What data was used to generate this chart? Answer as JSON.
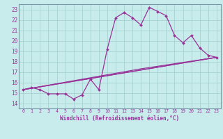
{
  "xlabel": "Windchill (Refroidissement éolien,°C)",
  "xlim": [
    -0.5,
    23.5
  ],
  "ylim": [
    13.5,
    23.5
  ],
  "yticks": [
    14,
    15,
    16,
    17,
    18,
    19,
    20,
    21,
    22,
    23
  ],
  "xticks": [
    0,
    1,
    2,
    3,
    4,
    5,
    6,
    7,
    8,
    9,
    10,
    11,
    12,
    13,
    14,
    15,
    16,
    17,
    18,
    19,
    20,
    21,
    22,
    23
  ],
  "bg_color": "#c8ecec",
  "grid_color": "#a0cccc",
  "line_color": "#993399",
  "spine_color": "#7799aa",
  "line1_x": [
    0,
    1,
    2,
    3,
    4,
    5,
    6,
    7,
    8,
    9,
    10,
    11,
    12,
    13,
    14,
    15,
    16,
    17,
    18,
    19,
    20,
    21,
    22,
    23
  ],
  "line1_y": [
    15.3,
    15.5,
    15.3,
    14.9,
    14.9,
    14.9,
    14.4,
    14.8,
    16.3,
    15.3,
    19.2,
    22.2,
    22.7,
    22.2,
    21.5,
    23.2,
    22.8,
    22.4,
    20.5,
    19.8,
    20.5,
    19.3,
    18.6,
    18.4
  ],
  "line2_x": [
    0,
    23
  ],
  "line2_y": [
    15.3,
    18.4
  ],
  "line3_x": [
    0,
    14,
    23
  ],
  "line3_y": [
    15.3,
    17.3,
    18.4
  ],
  "line4_x": [
    0,
    9,
    23
  ],
  "line4_y": [
    15.3,
    16.5,
    18.4
  ]
}
